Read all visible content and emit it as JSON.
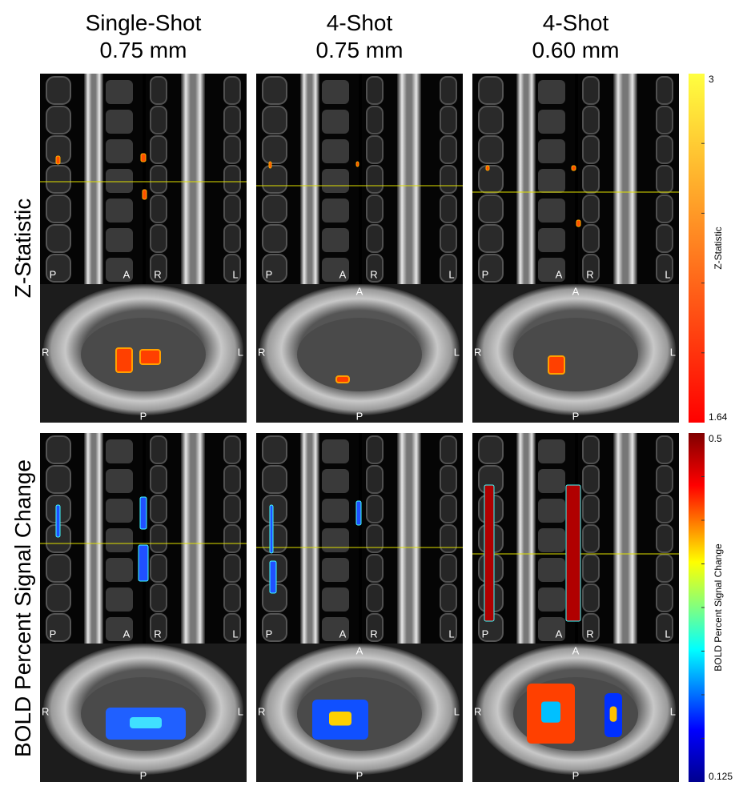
{
  "header": {
    "columns": [
      {
        "title": "Single-Shot",
        "resolution": "0.75 mm"
      },
      {
        "title": "4-Shot",
        "resolution": "0.75 mm"
      },
      {
        "title": "4-Shot",
        "resolution": "0.60 mm"
      }
    ]
  },
  "rows": [
    {
      "label": "Z-Statistic",
      "colorbar": {
        "max": 3,
        "min": 1.64,
        "label": "Z-Statistic"
      }
    },
    {
      "label": "BOLD Percent Signal Change",
      "colorbar": {
        "max": 0.5,
        "min": 0.125,
        "label": "BOLD Percent Signal Change"
      }
    }
  ],
  "orientation": {
    "sagittal_left": "P",
    "sagittal_right": "A",
    "coronal_left": "R",
    "coronal_right": "L",
    "axial_top": "A",
    "axial_left": "R",
    "axial_right": "L",
    "axial_bottom": "P"
  }
}
